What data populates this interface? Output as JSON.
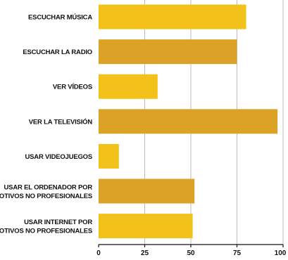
{
  "chart_data": {
    "type": "bar",
    "orientation": "horizontal",
    "categories": [
      [
        "ESCUCHAR MÚSICA"
      ],
      [
        "ESCUCHAR LA RADIO"
      ],
      [
        "VER VÍDEOS"
      ],
      [
        "VER LA TELEVISIÓN"
      ],
      [
        "USAR VIDEOJUEGOS"
      ],
      [
        "USAR EL ORDENADOR POR",
        "MOTIVOS NO PROFESIONALES"
      ],
      [
        "USAR INTERNET POR",
        "MOTIVOS NO PROFESIONALES"
      ]
    ],
    "values": [
      80,
      75,
      32,
      97,
      11,
      52,
      51
    ],
    "xlim": [
      0,
      100
    ],
    "xticks": [
      "0",
      "25",
      "50",
      "75",
      "100"
    ],
    "xtick_values": [
      0,
      25,
      50,
      75,
      100
    ],
    "bar_colors": [
      "#f2c21a",
      "#dca226",
      "#f2c21a",
      "#dca226",
      "#f2c21a",
      "#dca226",
      "#f2c21a"
    ],
    "grid": true,
    "legend": "none"
  }
}
